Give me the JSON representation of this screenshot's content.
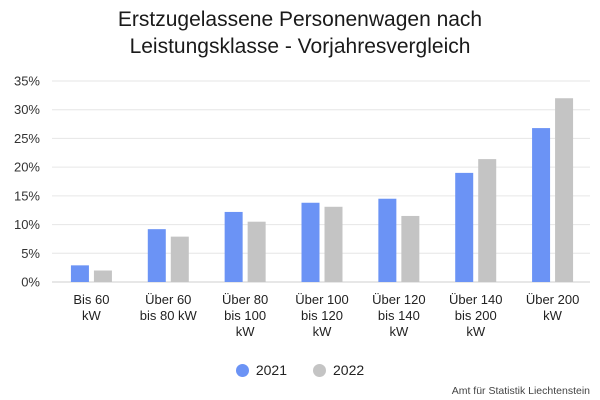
{
  "chart_data": {
    "type": "bar",
    "title_lines": [
      "Erstzugelassene Personenwagen nach",
      "Leistungsklasse - Vorjahresvergleich"
    ],
    "categories": [
      [
        "Bis 60",
        "kW"
      ],
      [
        "Über 60",
        "bis 80 kW"
      ],
      [
        "Über 80",
        "bis 100",
        "kW"
      ],
      [
        "Über 100",
        "bis 120",
        "kW"
      ],
      [
        "Über 120",
        "bis 140",
        "kW"
      ],
      [
        "Über 140",
        "bis 200",
        "kW"
      ],
      [
        "Über 200",
        "kW"
      ]
    ],
    "series": [
      {
        "name": "2021",
        "color": "#6b93f5",
        "values": [
          2.9,
          9.2,
          12.2,
          13.8,
          14.5,
          19.0,
          26.8
        ]
      },
      {
        "name": "2022",
        "color": "#c4c4c4",
        "values": [
          2.0,
          7.9,
          10.5,
          13.1,
          11.5,
          21.4,
          32.0
        ]
      }
    ],
    "ylim": [
      0,
      35
    ],
    "yticks": [
      "0%",
      "5%",
      "10%",
      "15%",
      "20%",
      "25%",
      "30%",
      "35%"
    ],
    "ytick_values": [
      0,
      5,
      10,
      15,
      20,
      25,
      30,
      35
    ],
    "grid": true,
    "legend_position": "bottom-center"
  },
  "source": "Amt für Statistik Liechtenstein"
}
